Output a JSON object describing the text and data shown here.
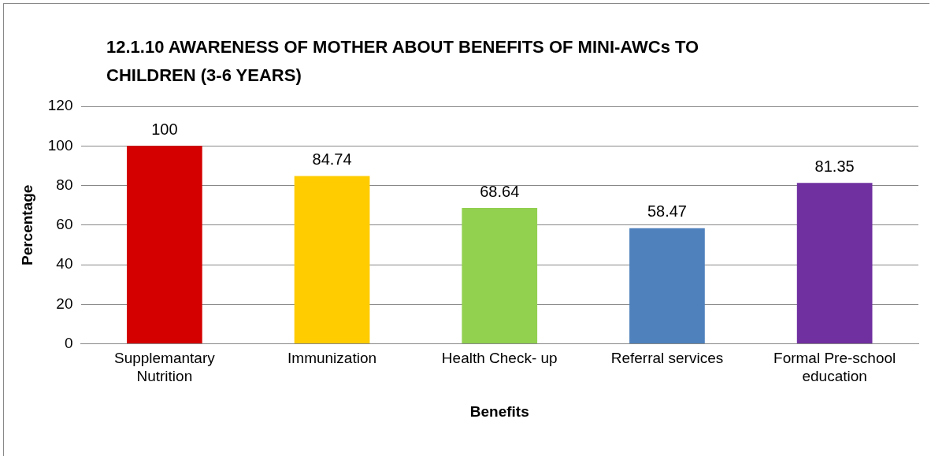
{
  "chart_data": {
    "type": "bar",
    "title": "12.1.10   AWARENESS OF MOTHER ABOUT BENEFITS OF MINI-AWCs TO CHILDREN (3-6 YEARS)",
    "xlabel": "Benefits",
    "ylabel": "Percentage",
    "categories": [
      "Supplemantary Nutrition",
      "Immunization",
      "Health Check- up",
      "Referral services",
      "Formal Pre-school education"
    ],
    "values": [
      100,
      84.74,
      68.64,
      58.47,
      81.35
    ],
    "colors": [
      "#d40000",
      "#ffcc00",
      "#92d050",
      "#4f81bd",
      "#7030a0"
    ],
    "ylim": [
      0,
      120
    ],
    "yticks": [
      0,
      20,
      40,
      60,
      80,
      100,
      120
    ],
    "grid": "y",
    "data_labels": true,
    "legend": false
  }
}
